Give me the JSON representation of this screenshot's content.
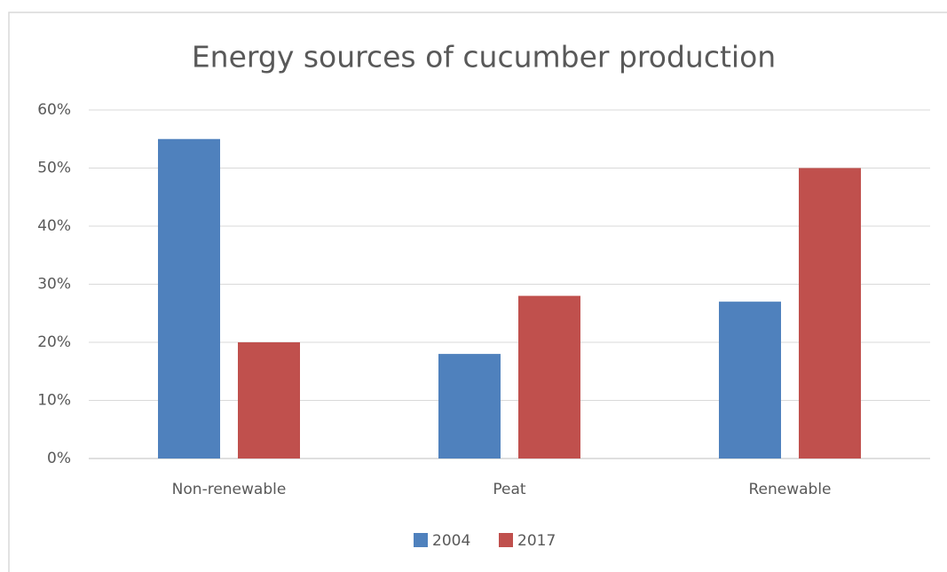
{
  "chart_data": {
    "type": "bar",
    "title": "Energy sources of cucumber production",
    "categories": [
      "Non-renewable",
      "Peat",
      "Renewable"
    ],
    "series": [
      {
        "name": "2004",
        "color": "#4f81bd",
        "values": [
          55,
          18,
          27
        ]
      },
      {
        "name": "2017",
        "color": "#c0504d",
        "values": [
          20,
          28,
          50
        ]
      }
    ],
    "ylim": [
      0,
      60
    ],
    "yticks": [
      {
        "value": 0,
        "label": "0%"
      },
      {
        "value": 10,
        "label": "10%"
      },
      {
        "value": 20,
        "label": "20%"
      },
      {
        "value": 30,
        "label": "30%"
      },
      {
        "value": 40,
        "label": "40%"
      },
      {
        "value": 50,
        "label": "50%"
      },
      {
        "value": 60,
        "label": "60%"
      }
    ],
    "grid": true,
    "legend": "bottom"
  }
}
